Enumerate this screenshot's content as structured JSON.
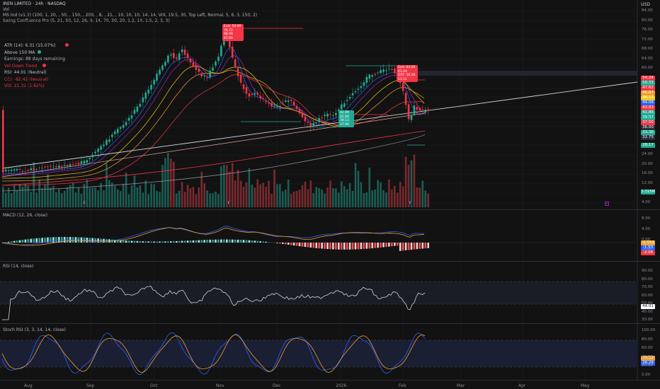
{
  "header": {
    "symbol_line": "IREN LIMITED · 24h · NASDAQ",
    "vol_label": "Vol",
    "ma_line": "MS Ind (v1.3) (100, 1, 20, , 50, , 150, , 200, , 8, , 21, , 10, 10, 10, 14, 14, VIX, 19.5, 30, Top Left, Normal, 5, 6, 3, 150, 2)",
    "swing_line": "Swing Confluence Pro (5, 21, 50, 12, 26, 9, 14, 70, 30, 20, 1.2, 14, 1.5, 2, 3, 3)",
    "currency": "USD"
  },
  "status_panel": [
    {
      "text": "ATR (14): 6.31 (15.07%)",
      "color": "#c0c3cc",
      "dot": "#f23645"
    },
    {
      "text": "Above 150 MA",
      "color": "#c0c3cc",
      "dot": "#22ab94"
    },
    {
      "text": "Earnings: 88 days remaining",
      "color": "#c0c3cc",
      "dot": ""
    },
    {
      "text": "Vol Down Trend",
      "color": "#f23645",
      "dot": "#f23645"
    },
    {
      "text": "RSI: 44.01 (Neutral)",
      "color": "#c0c3cc",
      "dot": ""
    },
    {
      "text": "CCI: -82.42 (Neutral)",
      "color": "#f23645",
      "dot": ""
    },
    {
      "text": "VIX: 21.31 (1.62%)",
      "color": "#f23645",
      "dot": ""
    }
  ],
  "price_axis": [
    "84.00",
    "80.00",
    "76.00",
    "72.00",
    "68.00",
    "64.00",
    "60.00",
    "56.00",
    "52.00",
    "48.00",
    "44.00",
    "40.00",
    "36.00",
    "32.00",
    "28.00",
    "24.00",
    "20.00",
    "16.00",
    "12.00",
    "8.00",
    "4.00"
  ],
  "price_tags": [
    {
      "text": "54.24",
      "color": "#f23645"
    },
    {
      "text": "50.33",
      "color": "#22ab94"
    },
    {
      "text": "47.62",
      "color": "#f23645"
    },
    {
      "text": "46.87",
      "color": "#f0a030"
    },
    {
      "text": "46.14",
      "color": "#f5c518"
    },
    {
      "text": "44.08",
      "color": "#2962ff"
    },
    {
      "text": "43.83",
      "color": "#f23645"
    },
    {
      "text": "41.86",
      "color": "#22ab94"
    },
    {
      "text": "39.57",
      "color": "#22ab94"
    },
    {
      "text": "37.50",
      "color": "#f23645"
    },
    {
      "text": "36.00",
      "color": "#2a2e39"
    },
    {
      "text": "33.38",
      "color": "#22ab94"
    },
    {
      "text": "32.75",
      "color": "#2a2e39"
    },
    {
      "text": "28.17",
      "color": "#22ab94"
    },
    {
      "text": "3.315M",
      "color": "#22ab94"
    }
  ],
  "macd": {
    "title": "MACD (12, 26, close)",
    "axis": [
      "8.00",
      "4.00",
      "0.00",
      "-4.00"
    ],
    "tags": [
      {
        "text": "-2.553",
        "color": "#f0a030"
      },
      {
        "text": "-1.53",
        "color": "#2962ff"
      },
      {
        "text": "-2.06",
        "color": "#f23645"
      }
    ]
  },
  "rsi": {
    "title": "RSI (14, close)",
    "axis": [
      "90.00",
      "80.00",
      "70.00",
      "60.00",
      "50.00",
      "40.00",
      "30.00"
    ],
    "tag": "44.01"
  },
  "stoch": {
    "title": "Stoch RSI (3, 3, 14, 14, close)",
    "axis": [
      "100.00",
      "80.00",
      "60.00",
      "40.00",
      "20.00",
      "0.00"
    ],
    "tags": [
      {
        "text": "34.52",
        "color": "#f0a030"
      },
      {
        "text": "26.29",
        "color": "#2962ff"
      }
    ]
  },
  "time_axis": [
    "Aug",
    "Sep",
    "Oct",
    "Nov",
    "Dec",
    "2026",
    "Feb",
    "Mar",
    "Apr",
    "May"
  ],
  "tooltips": {
    "top_left": [
      "Exit: 59.99",
      "76.72",
      "88.98",
      "67.80"
    ],
    "mid_right": [
      "Exit: 64.00",
      "61.94",
      "GST: 56.00",
      "53.11"
    ],
    "green_box": [
      "42.99",
      "41.80",
      "38.13",
      "37.99"
    ]
  },
  "event_markers": [
    "E",
    "E",
    "E",
    "E"
  ]
}
